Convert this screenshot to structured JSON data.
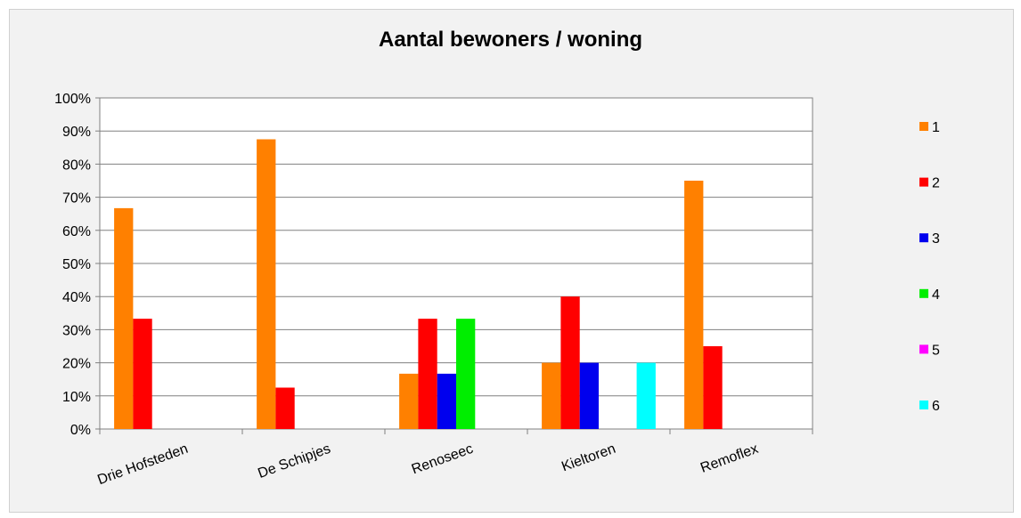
{
  "chart_data": {
    "type": "bar",
    "title": "Aantal bewoners / woning",
    "xlabel": "",
    "ylabel": "",
    "ylim": [
      0,
      100
    ],
    "yticks": [
      "0%",
      "10%",
      "20%",
      "30%",
      "40%",
      "50%",
      "60%",
      "70%",
      "80%",
      "90%",
      "100%"
    ],
    "categories": [
      "Drie Hofsteden",
      "De Schipjes",
      "Renoseec",
      "Kieltoren",
      "Remoflex"
    ],
    "series": [
      {
        "name": "1",
        "color": "#ff8000",
        "values": [
          66.7,
          87.5,
          16.7,
          20,
          75
        ]
      },
      {
        "name": "2",
        "color": "#ff0000",
        "values": [
          33.3,
          12.5,
          33.3,
          40,
          25
        ]
      },
      {
        "name": "3",
        "color": "#0000ee",
        "values": [
          0,
          0,
          16.7,
          20,
          0
        ]
      },
      {
        "name": "4",
        "color": "#00ee00",
        "values": [
          0,
          0,
          33.3,
          0,
          0
        ]
      },
      {
        "name": "5",
        "color": "#ff00ff",
        "values": [
          0,
          0,
          0,
          0,
          0
        ]
      },
      {
        "name": "6",
        "color": "#00ffff",
        "values": [
          0,
          0,
          0,
          20,
          0
        ]
      }
    ],
    "grid": true,
    "legend_position": "right"
  }
}
